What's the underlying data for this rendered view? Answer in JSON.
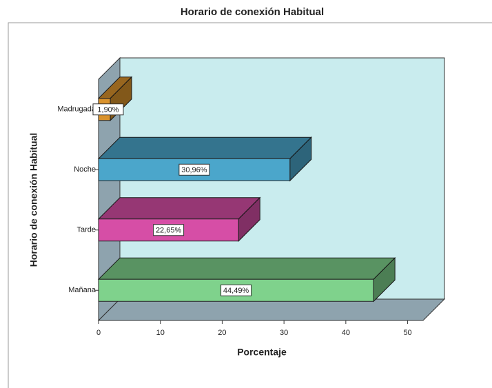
{
  "chart_data": {
    "type": "bar3d",
    "orientation": "horizontal",
    "title": "Horario de conexión Habitual",
    "xlabel": "Porcentaje",
    "ylabel": "Horario de conexión Habitual",
    "categories": [
      "Madrugada",
      "Noche",
      "Tarde",
      "Mañana"
    ],
    "series": [
      {
        "name": "Porcentaje",
        "colors": [
          "#d9922c",
          "#4ba6cb",
          "#d64ea6",
          "#7fd28c"
        ],
        "values": [
          1.9,
          30.96,
          22.65,
          44.49
        ],
        "value_labels": [
          "1,90%",
          "30,96%",
          "22,65%",
          "44,49%"
        ]
      }
    ],
    "xlim": [
      0,
      52.5
    ],
    "xticks": [
      0,
      10,
      20,
      30,
      40,
      50
    ],
    "grid": false
  }
}
